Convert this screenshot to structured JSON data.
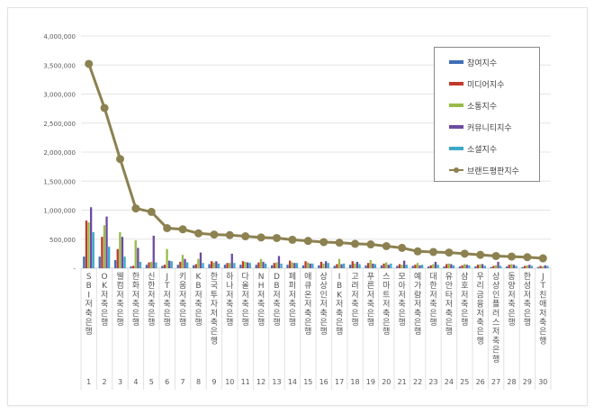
{
  "chart_data": {
    "type": "bar+line",
    "title": "",
    "xlabel": "",
    "ylabel": "",
    "ylim": [
      0,
      4000000
    ],
    "yticks": [
      "-",
      "500,000",
      "1,000,000",
      "1,500,000",
      "2,000,000",
      "2,500,000",
      "3,000,000",
      "3,500,000",
      "4,000,000"
    ],
    "grid": true,
    "legend_position": "top-right inside",
    "categories": [
      "SBI저축은행",
      "OK저축은행",
      "웰컴저축은행",
      "한화저축은행",
      "신한저축은행",
      "JT저축은행",
      "키움저축은행",
      "KB저축은행",
      "한국투자저축은행",
      "하나저축은행",
      "다올저축은행",
      "NH저축은행",
      "DB저축은행",
      "페퍼저축은행",
      "애큐온저축은행",
      "상상인저축은행",
      "IBK저축은행",
      "고려저축은행",
      "푸른저축은행",
      "스마트저축은행",
      "모아저축은행",
      "예가람저축은행",
      "대한저축은행",
      "유안타저축은행",
      "삼호저축은행",
      "우리금융저축은행",
      "상상인플러스저축은행",
      "동양저축은행",
      "한성저축은행",
      "JT친애저축은행"
    ],
    "ranks": [
      "1",
      "2",
      "3",
      "4",
      "5",
      "6",
      "7",
      "8",
      "9",
      "10",
      "11",
      "12",
      "13",
      "14",
      "15",
      "16",
      "17",
      "18",
      "19",
      "20",
      "21",
      "22",
      "23",
      "24",
      "25",
      "26",
      "27",
      "28",
      "29",
      "30"
    ],
    "series": [
      {
        "name": "참여지수",
        "type": "bar",
        "color": "#3f6eb5",
        "values": [
          200000,
          200000,
          140000,
          30000,
          60000,
          40000,
          60000,
          50000,
          70000,
          60000,
          60000,
          60000,
          50000,
          60000,
          50000,
          50000,
          40000,
          60000,
          50000,
          50000,
          40000,
          40000,
          30000,
          30000,
          30000,
          30000,
          20000,
          30000,
          20000,
          20000
        ]
      },
      {
        "name": "미디어지수",
        "type": "bar",
        "color": "#c0392b",
        "values": [
          820000,
          540000,
          330000,
          40000,
          100000,
          60000,
          110000,
          70000,
          120000,
          90000,
          120000,
          100000,
          90000,
          130000,
          120000,
          110000,
          70000,
          120000,
          90000,
          80000,
          70000,
          60000,
          50000,
          70000,
          50000,
          60000,
          40000,
          60000,
          40000,
          40000
        ]
      },
      {
        "name": "소통지수",
        "type": "bar",
        "color": "#98bb48",
        "values": [
          790000,
          740000,
          620000,
          480000,
          110000,
          330000,
          230000,
          160000,
          100000,
          90000,
          110000,
          160000,
          100000,
          100000,
          100000,
          80000,
          160000,
          80000,
          140000,
          100000,
          60000,
          90000,
          70000,
          80000,
          70000,
          70000,
          50000,
          70000,
          50000,
          30000
        ]
      },
      {
        "name": "커뮤니티지수",
        "type": "bar",
        "color": "#6c4ba0",
        "values": [
          1050000,
          890000,
          540000,
          350000,
          560000,
          130000,
          160000,
          270000,
          120000,
          250000,
          100000,
          110000,
          210000,
          90000,
          80000,
          120000,
          70000,
          110000,
          80000,
          60000,
          130000,
          50000,
          110000,
          70000,
          60000,
          70000,
          110000,
          60000,
          60000,
          50000
        ]
      },
      {
        "name": "소셜지수",
        "type": "bar",
        "color": "#3ba9c9",
        "values": [
          620000,
          370000,
          200000,
          110000,
          100000,
          120000,
          100000,
          90000,
          80000,
          90000,
          90000,
          80000,
          80000,
          90000,
          80000,
          90000,
          80000,
          70000,
          70000,
          80000,
          60000,
          60000,
          60000,
          50000,
          50000,
          40000,
          40000,
          40000,
          40000,
          40000
        ]
      },
      {
        "name": "브랜드평판지수",
        "type": "line",
        "color": "#8c8150",
        "values": [
          3520000,
          2760000,
          1880000,
          1030000,
          970000,
          690000,
          670000,
          600000,
          580000,
          570000,
          550000,
          530000,
          520000,
          490000,
          470000,
          450000,
          440000,
          420000,
          410000,
          380000,
          350000,
          290000,
          280000,
          270000,
          250000,
          230000,
          210000,
          200000,
          190000,
          170000
        ]
      }
    ]
  }
}
